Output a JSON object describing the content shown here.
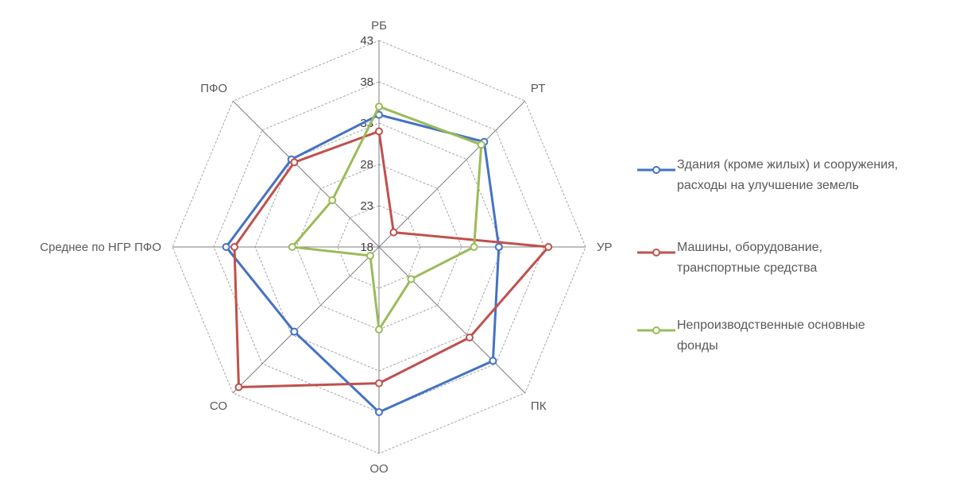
{
  "chart_data": {
    "type": "radar",
    "title": "",
    "categories": [
      "РБ",
      "РТ",
      "УР",
      "ПК",
      "ОО",
      "СО",
      "Среднее по НГР ПФО",
      "ПФО"
    ],
    "axis": {
      "min": 18,
      "max": 43,
      "step": 5,
      "ticks": [
        "18",
        "23",
        "28",
        "33",
        "38",
        "43"
      ]
    },
    "grid": true,
    "legend_position": "right",
    "series": [
      {
        "name": "Здания (кроме жилых) и сооружения,\nрасходы на улучшение земель",
        "color": "#4472C4",
        "values": [
          34,
          36,
          32.5,
          37.5,
          38,
          32.5,
          36.5,
          33
        ]
      },
      {
        "name": "Машины, оборудование,\nтранспортные средства",
        "color": "#C0504D",
        "values": [
          32,
          20.5,
          38.5,
          33.5,
          34.5,
          42,
          35.5,
          32.5
        ]
      },
      {
        "name": "Непроизводственные основные\nфонды",
        "color": "#9BBB59",
        "values": [
          35,
          35.5,
          29.5,
          23.5,
          28,
          19.5,
          28.5,
          26
        ]
      }
    ]
  }
}
